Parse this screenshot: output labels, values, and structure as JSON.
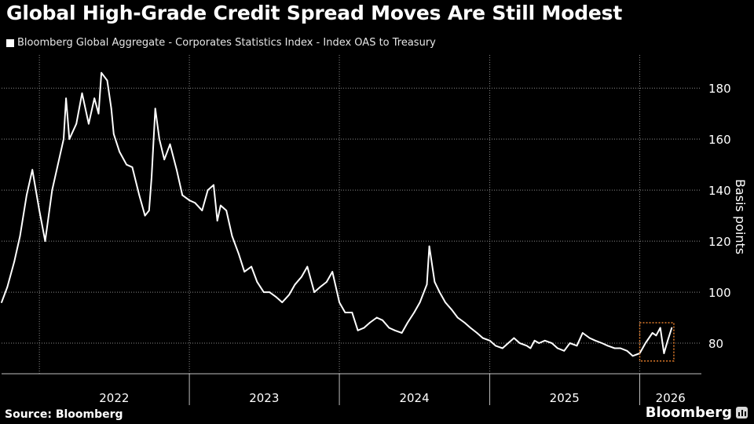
{
  "title": "Global High-Grade Credit Spread Moves Are Still Modest",
  "legend_label": "Bloomberg Global Aggregate - Corporates Statistics Index - Index OAS to Treasury",
  "source": "Source: Bloomberg",
  "brand": "Bloomberg",
  "colors": {
    "background": "#000000",
    "line": "#ffffff",
    "grid": "#8a8a8a",
    "highlight": "#e07b2a"
  },
  "chart_data": {
    "type": "line",
    "ylabel": "Basis points",
    "ylim": [
      68,
      193
    ],
    "yticks": [
      80,
      100,
      120,
      140,
      160,
      180
    ],
    "xlim": [
      "2021-10-01",
      "2026-05-31"
    ],
    "x_year_labels": [
      {
        "label": "2022",
        "start": "2022-01-01",
        "end": "2022-12-31"
      },
      {
        "label": "2023",
        "start": "2023-01-01",
        "end": "2023-12-31"
      },
      {
        "label": "2024",
        "start": "2024-01-01",
        "end": "2024-12-31"
      },
      {
        "label": "2025",
        "start": "2025-01-01",
        "end": "2025-12-31"
      },
      {
        "label": "2026",
        "start": "2026-01-01",
        "end": "2026-05-31"
      }
    ],
    "grid": true,
    "legend_placement": "top-left",
    "series": [
      {
        "name": "Bloomberg Global Aggregate - Corporates Statistics Index - Index OAS to Treasury",
        "x": [
          "2021-10-01",
          "2021-10-15",
          "2021-11-01",
          "2021-11-15",
          "2021-12-01",
          "2021-12-15",
          "2022-01-01",
          "2022-01-15",
          "2022-02-01",
          "2022-02-15",
          "2022-03-01",
          "2022-03-07",
          "2022-03-15",
          "2022-04-01",
          "2022-04-15",
          "2022-05-01",
          "2022-05-15",
          "2022-05-25",
          "2022-06-01",
          "2022-06-15",
          "2022-06-25",
          "2022-07-01",
          "2022-07-15",
          "2022-08-01",
          "2022-08-15",
          "2022-09-01",
          "2022-09-15",
          "2022-09-25",
          "2022-10-01",
          "2022-10-10",
          "2022-10-20",
          "2022-11-01",
          "2022-11-15",
          "2022-12-01",
          "2022-12-15",
          "2023-01-01",
          "2023-01-15",
          "2023-02-01",
          "2023-02-15",
          "2023-03-01",
          "2023-03-10",
          "2023-03-18",
          "2023-04-01",
          "2023-04-15",
          "2023-05-01",
          "2023-05-15",
          "2023-06-01",
          "2023-06-15",
          "2023-07-01",
          "2023-07-15",
          "2023-08-01",
          "2023-08-15",
          "2023-09-01",
          "2023-09-15",
          "2023-10-01",
          "2023-10-15",
          "2023-11-01",
          "2023-11-15",
          "2023-12-01",
          "2023-12-15",
          "2024-01-01",
          "2024-01-15",
          "2024-02-01",
          "2024-02-15",
          "2024-03-01",
          "2024-03-15",
          "2024-04-01",
          "2024-04-15",
          "2024-05-01",
          "2024-05-15",
          "2024-06-01",
          "2024-06-15",
          "2024-07-01",
          "2024-07-15",
          "2024-08-01",
          "2024-08-07",
          "2024-08-20",
          "2024-09-01",
          "2024-09-15",
          "2024-10-01",
          "2024-10-15",
          "2024-11-01",
          "2024-11-15",
          "2024-12-01",
          "2024-12-15",
          "2025-01-01",
          "2025-01-15",
          "2025-02-01",
          "2025-02-15",
          "2025-03-01",
          "2025-03-15",
          "2025-04-01",
          "2025-04-10",
          "2025-04-20",
          "2025-05-01",
          "2025-05-15",
          "2025-06-01",
          "2025-06-15",
          "2025-07-01",
          "2025-07-15",
          "2025-08-01",
          "2025-08-15",
          "2025-09-01",
          "2025-09-15",
          "2025-10-01",
          "2025-10-15",
          "2025-11-01",
          "2025-11-15",
          "2025-12-01",
          "2025-12-15",
          "2026-01-01",
          "2026-01-15",
          "2026-02-01",
          "2026-02-10",
          "2026-02-20",
          "2026-03-01",
          "2026-03-10",
          "2026-03-20"
        ],
        "y": [
          96,
          102,
          112,
          122,
          138,
          148,
          132,
          120,
          140,
          150,
          160,
          176,
          160,
          166,
          178,
          166,
          176,
          170,
          186,
          183,
          172,
          162,
          155,
          150,
          149,
          138,
          130,
          132,
          145,
          172,
          160,
          152,
          158,
          148,
          138,
          136,
          135,
          132,
          140,
          142,
          128,
          134,
          132,
          122,
          115,
          108,
          110,
          104,
          100,
          100,
          98,
          96,
          99,
          103,
          106,
          110,
          100,
          102,
          104,
          108,
          96,
          92,
          92,
          85,
          86,
          88,
          90,
          89,
          86,
          85,
          84,
          88,
          92,
          96,
          103,
          118,
          104,
          100,
          96,
          93,
          90,
          88,
          86,
          84,
          82,
          81,
          79,
          78,
          80,
          82,
          80,
          79,
          78,
          81,
          80,
          81,
          80,
          78,
          77,
          80,
          79,
          84,
          82,
          81,
          80,
          79,
          78,
          78,
          77,
          75,
          76,
          80,
          84,
          83,
          86,
          76,
          81,
          86
        ]
      }
    ],
    "highlight_box": {
      "x": [
        "2026-01-01",
        "2026-03-25"
      ],
      "y": [
        73,
        88
      ]
    }
  }
}
